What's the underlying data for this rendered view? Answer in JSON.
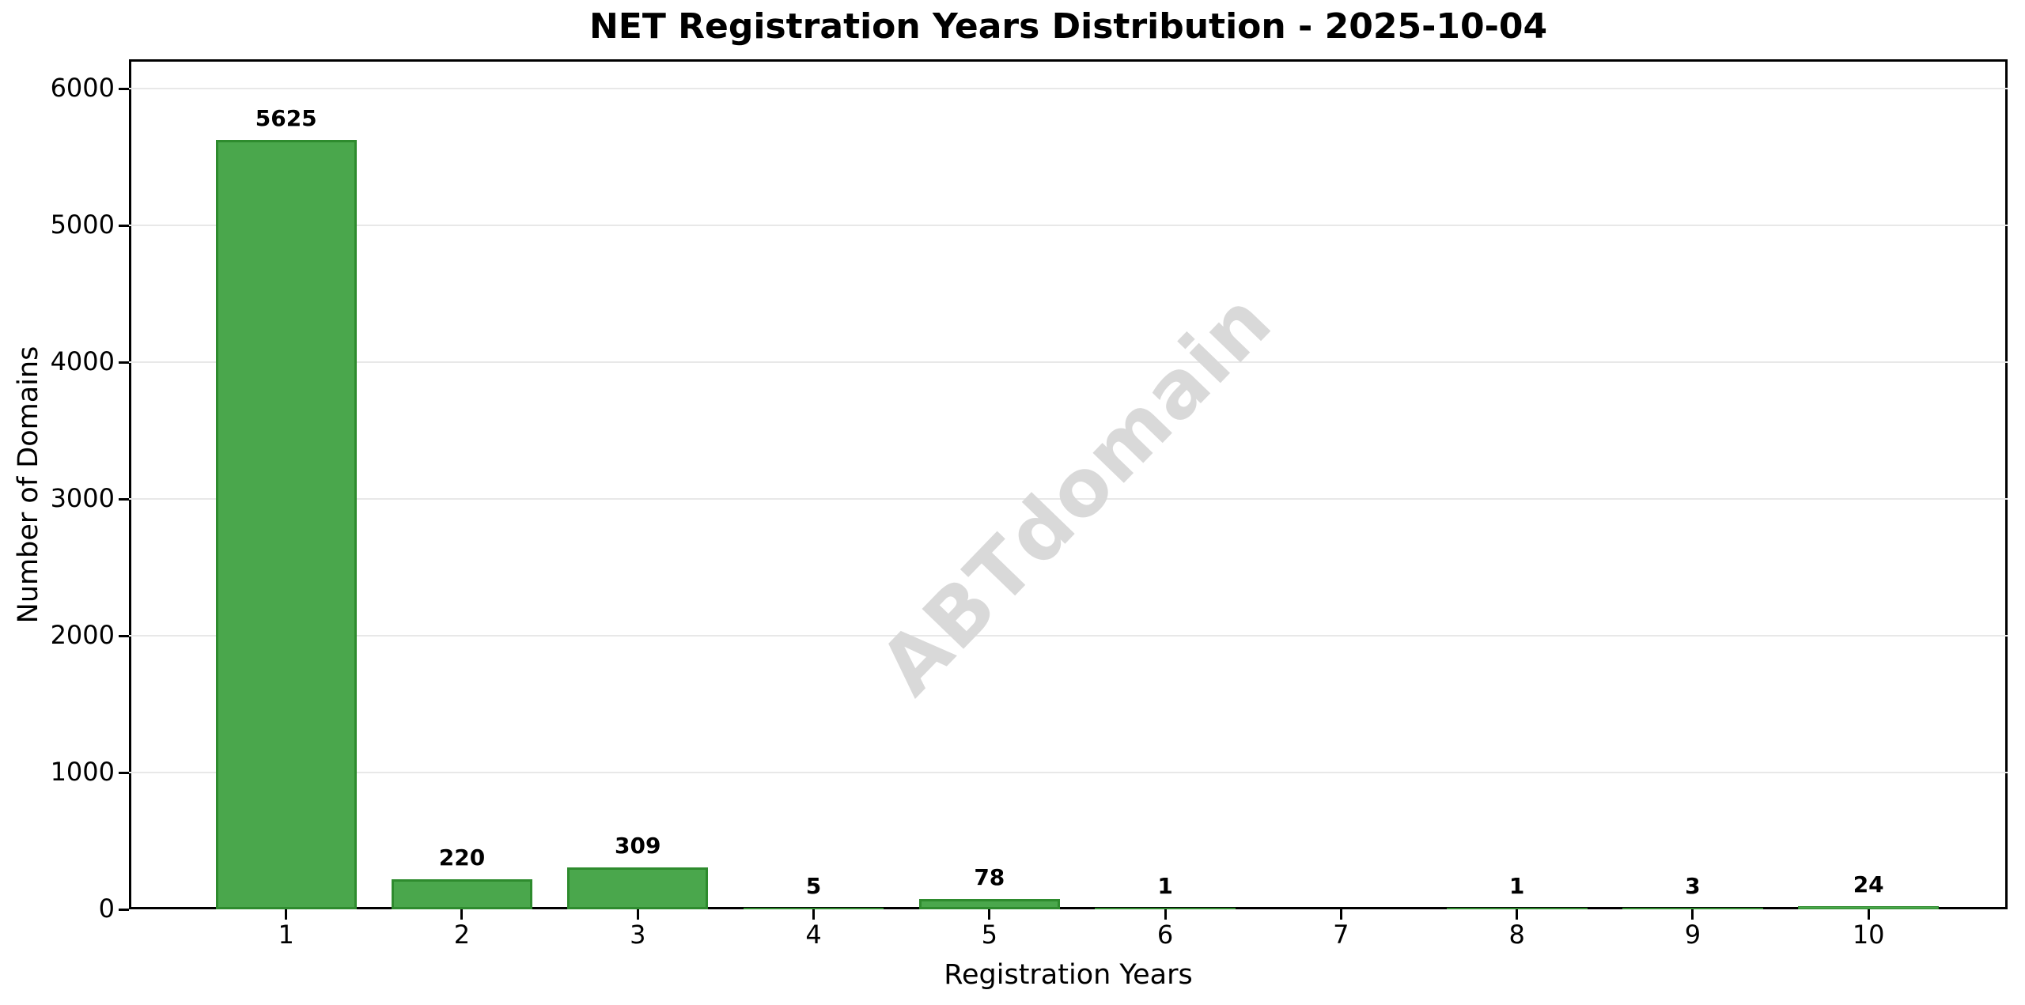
{
  "title": "NET Registration Years Distribution - 2025-10-04",
  "watermark_text": "ABTdomain",
  "colors": {
    "bar_fill": "#4aa74c",
    "bar_edge": "#2e8b2e",
    "gridline": "#e8e8e8",
    "axis": "#000000",
    "watermark": "#d9d9d9",
    "background": "#ffffff",
    "text": "#000000"
  },
  "chart_data": {
    "type": "bar",
    "title": "NET Registration Years Distribution - 2025-10-04",
    "xlabel": "Registration Years",
    "ylabel": "Number of Domains",
    "categories": [
      1,
      2,
      3,
      4,
      5,
      6,
      7,
      8,
      9,
      10
    ],
    "values": [
      5625,
      220,
      309,
      5,
      78,
      1,
      0,
      1,
      3,
      24
    ],
    "bar_labels": [
      "5625",
      "220",
      "309",
      "5",
      "78",
      "1",
      "",
      "1",
      "3",
      "24"
    ],
    "yticks": [
      0,
      1000,
      2000,
      3000,
      4000,
      5000,
      6000
    ],
    "ylim": [
      0,
      6214
    ],
    "xlim": [
      0.106,
      10.791
    ],
    "bar_width": 0.8,
    "grid": "horizontal",
    "legend": "none"
  }
}
